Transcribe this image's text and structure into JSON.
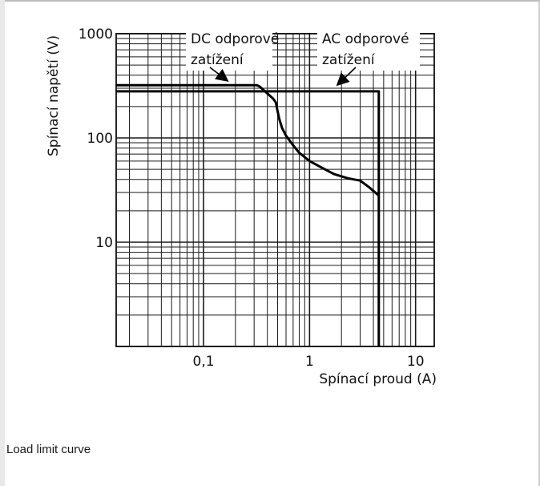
{
  "caption": "Load limit curve",
  "chart_data": {
    "type": "line",
    "xlabel": "Spínací proud (A)",
    "ylabel": "Spínací napětí (V)",
    "xscale": "log",
    "yscale": "log",
    "xlim": [
      0.015,
      15
    ],
    "ylim": [
      1,
      1000
    ],
    "grid": true,
    "x_ticks": [
      {
        "value": 0.1,
        "label": "0,1"
      },
      {
        "value": 1,
        "label": "1"
      },
      {
        "value": 10,
        "label": "10"
      }
    ],
    "y_ticks": [
      {
        "value": 10,
        "label": "10"
      },
      {
        "value": 100,
        "label": "100"
      },
      {
        "value": 1000,
        "label": "1000"
      }
    ],
    "series": [
      {
        "name": "DC odporové zatížení",
        "x": [
          0.015,
          0.32,
          0.34,
          0.38,
          0.45,
          0.48,
          0.5,
          0.52,
          0.55,
          0.6,
          0.7,
          0.8,
          1.0,
          1.3,
          1.7,
          2.3,
          3.0,
          3.6,
          4.5
        ],
        "y": [
          320,
          320,
          310,
          280,
          240,
          220,
          180,
          150,
          125,
          105,
          85,
          72,
          60,
          52,
          45,
          41,
          39,
          34,
          28
        ]
      },
      {
        "name": "AC odporové zatížení",
        "x": [
          0.015,
          4.5,
          4.5
        ],
        "y": [
          280,
          280,
          1
        ]
      }
    ],
    "annotations": [
      {
        "lines": [
          "DC odporové",
          "zatížení"
        ],
        "target_series": 0
      },
      {
        "lines": [
          "AC odporové",
          "zatížení"
        ],
        "target_series": 1
      }
    ]
  }
}
